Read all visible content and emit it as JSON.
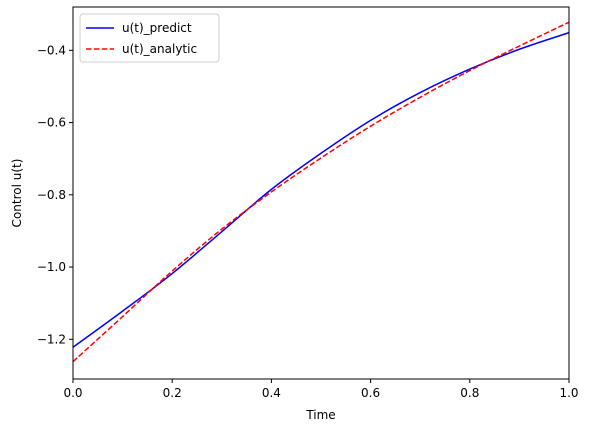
{
  "chart_data": {
    "type": "line",
    "xlabel": "Time",
    "ylabel": "Control u(t)",
    "xlim": [
      0.0,
      1.0
    ],
    "ylim": [
      -1.31,
      -0.28
    ],
    "grid": false,
    "legend_placement": "top-left",
    "xticks": [
      0.0,
      0.2,
      0.4,
      0.6,
      0.8,
      1.0
    ],
    "xtick_labels": [
      "0.0",
      "0.2",
      "0.4",
      "0.6",
      "0.8",
      "1.0"
    ],
    "yticks": [
      -1.2,
      -1.0,
      -0.8,
      -0.6,
      -0.4
    ],
    "ytick_labels": [
      "−1.2",
      "−1.0",
      "−0.8",
      "−0.6",
      "−0.4"
    ],
    "series": [
      {
        "name": "u(t)_predict",
        "color": "#0000ff",
        "style": "solid",
        "x": [
          0.0,
          0.1,
          0.2,
          0.3,
          0.4,
          0.5,
          0.6,
          0.7,
          0.8,
          0.9,
          1.0
        ],
        "values": [
          -1.222,
          -1.122,
          -1.018,
          -0.902,
          -0.785,
          -0.685,
          -0.594,
          -0.517,
          -0.452,
          -0.397,
          -0.351
        ]
      },
      {
        "name": "u(t)_analytic",
        "color": "#ff0000",
        "style": "dashed",
        "x": [
          0.0,
          0.1,
          0.2,
          0.3,
          0.4,
          0.5,
          0.6,
          0.7,
          0.8,
          0.9,
          1.0
        ],
        "values": [
          -1.262,
          -1.137,
          -1.011,
          -0.895,
          -0.792,
          -0.698,
          -0.61,
          -0.53,
          -0.456,
          -0.388,
          -0.322
        ]
      }
    ]
  }
}
